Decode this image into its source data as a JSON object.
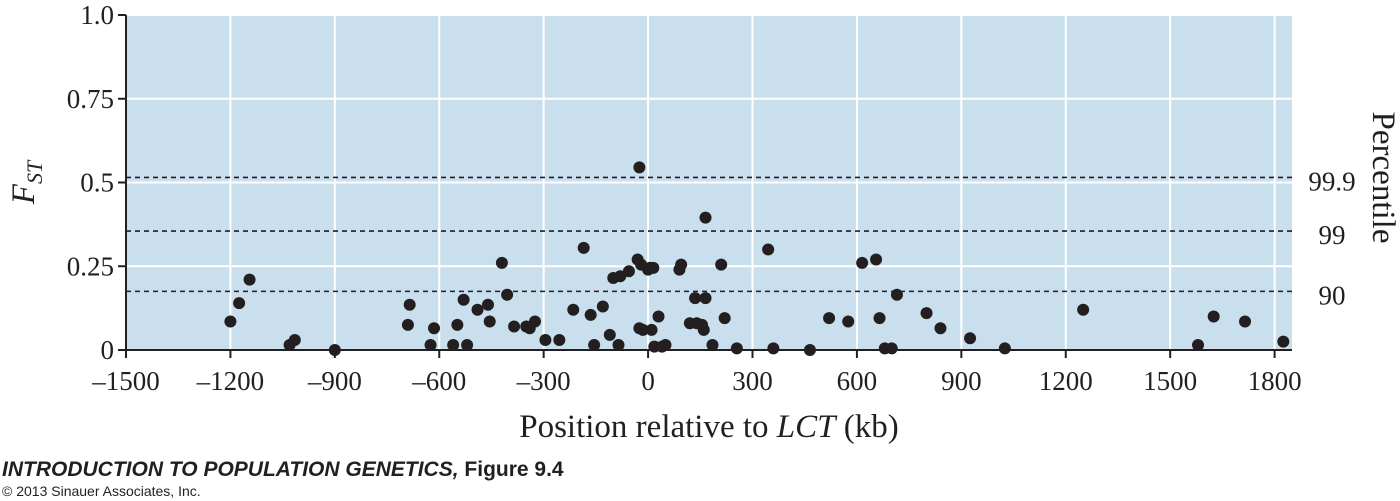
{
  "chart_data": {
    "type": "scatter",
    "xlabel": {
      "prefix": "Position relative to ",
      "italic": "LCT",
      "suffix": " (kb)"
    },
    "ylabel": {
      "main": "F",
      "subscript": "ST"
    },
    "xlim": [
      -1500,
      1850
    ],
    "ylim": [
      0,
      1.0
    ],
    "x_ticks": [
      -1500,
      -1200,
      -900,
      -600,
      -300,
      0,
      300,
      600,
      900,
      1200,
      1500,
      1800
    ],
    "x_tick_labels": [
      "–1500",
      "–1200",
      "–900",
      "–600",
      "–300",
      "0",
      "300",
      "600",
      "900",
      "1200",
      "1500",
      "1800"
    ],
    "y_ticks": [
      0,
      0.25,
      0.5,
      0.75,
      1.0
    ],
    "y_tick_labels": [
      "0",
      "0.25",
      "0.5",
      "0.75",
      "1.0"
    ],
    "grid": true,
    "background_color": "#c9dfed",
    "point_color": "#231f20",
    "percentile_axis_label": "Percentile",
    "percentile_lines": [
      {
        "label": "99.9",
        "y": 0.515
      },
      {
        "label": "99",
        "y": 0.355
      },
      {
        "label": "90",
        "y": 0.175
      }
    ],
    "points": [
      [
        -1200,
        0.085
      ],
      [
        -1175,
        0.14
      ],
      [
        -1145,
        0.21
      ],
      [
        -1030,
        0.015
      ],
      [
        -1015,
        0.03
      ],
      [
        -900,
        0.0
      ],
      [
        -690,
        0.075
      ],
      [
        -685,
        0.135
      ],
      [
        -625,
        0.015
      ],
      [
        -615,
        0.065
      ],
      [
        -560,
        0.015
      ],
      [
        -548,
        0.075
      ],
      [
        -530,
        0.15
      ],
      [
        -520,
        0.015
      ],
      [
        -490,
        0.12
      ],
      [
        -460,
        0.135
      ],
      [
        -455,
        0.085
      ],
      [
        -420,
        0.26
      ],
      [
        -405,
        0.165
      ],
      [
        -385,
        0.07
      ],
      [
        -350,
        0.07
      ],
      [
        -340,
        0.065
      ],
      [
        -325,
        0.085
      ],
      [
        -295,
        0.03
      ],
      [
        -255,
        0.03
      ],
      [
        -215,
        0.12
      ],
      [
        -185,
        0.305
      ],
      [
        -165,
        0.105
      ],
      [
        -155,
        0.015
      ],
      [
        -130,
        0.13
      ],
      [
        -110,
        0.045
      ],
      [
        -100,
        0.215
      ],
      [
        -85,
        0.015
      ],
      [
        -80,
        0.22
      ],
      [
        -55,
        0.235
      ],
      [
        -30,
        0.27
      ],
      [
        -25,
        0.545
      ],
      [
        -25,
        0.065
      ],
      [
        -20,
        0.255
      ],
      [
        -15,
        0.06
      ],
      [
        0,
        0.24
      ],
      [
        5,
        0.245
      ],
      [
        10,
        0.06
      ],
      [
        15,
        0.245
      ],
      [
        18,
        0.01
      ],
      [
        30,
        0.1
      ],
      [
        40,
        0.01
      ],
      [
        50,
        0.015
      ],
      [
        90,
        0.24
      ],
      [
        95,
        0.255
      ],
      [
        120,
        0.08
      ],
      [
        135,
        0.155
      ],
      [
        140,
        0.08
      ],
      [
        155,
        0.075
      ],
      [
        160,
        0.06
      ],
      [
        165,
        0.395
      ],
      [
        165,
        0.155
      ],
      [
        185,
        0.015
      ],
      [
        210,
        0.255
      ],
      [
        220,
        0.095
      ],
      [
        255,
        0.005
      ],
      [
        345,
        0.3
      ],
      [
        360,
        0.005
      ],
      [
        465,
        0.0
      ],
      [
        520,
        0.095
      ],
      [
        575,
        0.085
      ],
      [
        615,
        0.26
      ],
      [
        655,
        0.27
      ],
      [
        665,
        0.095
      ],
      [
        680,
        0.005
      ],
      [
        700,
        0.005
      ],
      [
        715,
        0.165
      ],
      [
        800,
        0.11
      ],
      [
        840,
        0.065
      ],
      [
        925,
        0.035
      ],
      [
        1025,
        0.005
      ],
      [
        1250,
        0.12
      ],
      [
        1580,
        0.015
      ],
      [
        1625,
        0.1
      ],
      [
        1715,
        0.085
      ],
      [
        1825,
        0.025
      ]
    ]
  },
  "caption": {
    "title_italic": "INTRODUCTION TO POPULATION GENETICS,",
    "title_figure": " Figure 9.4",
    "copyright": "© 2013 Sinauer Associates, Inc."
  }
}
